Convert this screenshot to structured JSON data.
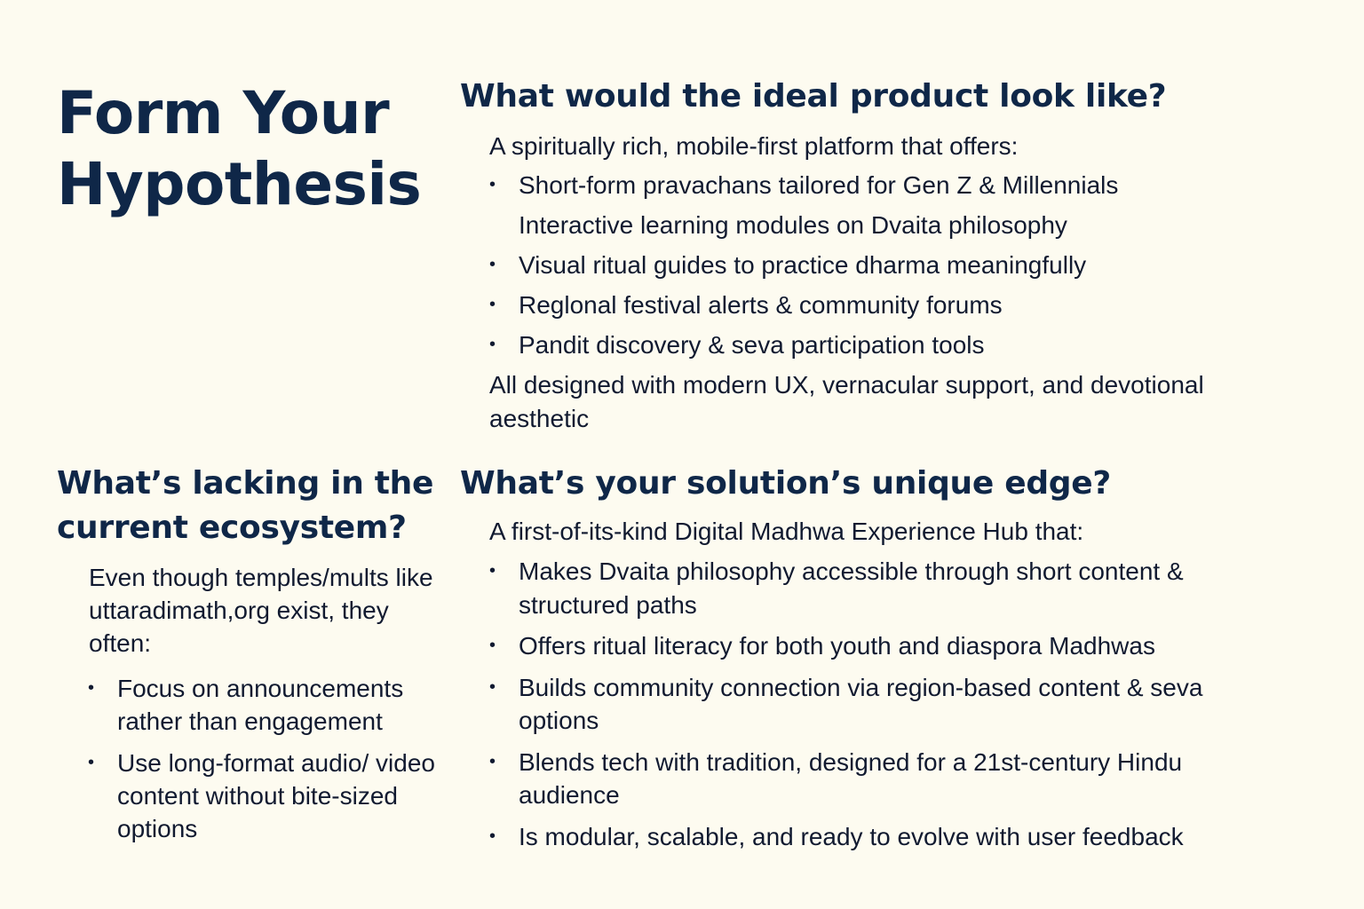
{
  "page": {
    "title": "Form Your Hypothesis"
  },
  "ideal_product": {
    "heading": "What would the ideal product look like?",
    "intro": "A spiritually rich, mobile-first platform that offers:",
    "items": [
      {
        "text": "Short-form pravachans tailored for Gen Z & Millennials",
        "bullet": "•"
      },
      {
        "text": "Interactive learning modules on Dvaita philosophy",
        "bullet": ""
      },
      {
        "text": "Visual ritual guides to practice dharma meaningfully",
        "bullet": "•"
      },
      {
        "text": "Reglonal festival alerts & community forums",
        "bullet": "•"
      },
      {
        "text": "Pandit discovery & seva participation tools",
        "bullet": "•"
      }
    ],
    "outro": "All designed with modern UX, vernacular support, and devotional aesthetic"
  },
  "lacking": {
    "heading": "What’s lacking in the current ecosystem?",
    "intro": "Even though temples/mults like uttaradimath,org exist, they often:",
    "items": [
      {
        "text": "Focus on announcements rather than engagement",
        "bullet": "•"
      },
      {
        "text": "Use long-format audio/ video content without bite-sized options",
        "bullet": "•"
      }
    ]
  },
  "unique_edge": {
    "heading": "What’s your solution’s unique edge?",
    "intro": "A first-of-its-kind Digital Madhwa Experience Hub that:",
    "items": [
      {
        "text": "Makes Dvaita philosophy accessible through short content & structured paths",
        "bullet": "•"
      },
      {
        "text": "Offers ritual literacy for both youth and diaspora Madhwas",
        "bullet": "•"
      },
      {
        "text": "Builds community connection via region-based content & seva options",
        "bullet": "•"
      },
      {
        "text": "Blends tech with tradition, designed for a 21st-century Hindu audience",
        "bullet": "•"
      },
      {
        "text": "Is modular, scalable, and ready to evolve with user feedback",
        "bullet": "•"
      }
    ]
  },
  "colors": {
    "background": "#fdfbf0",
    "heading": "#0f2748",
    "body": "#111a30"
  }
}
